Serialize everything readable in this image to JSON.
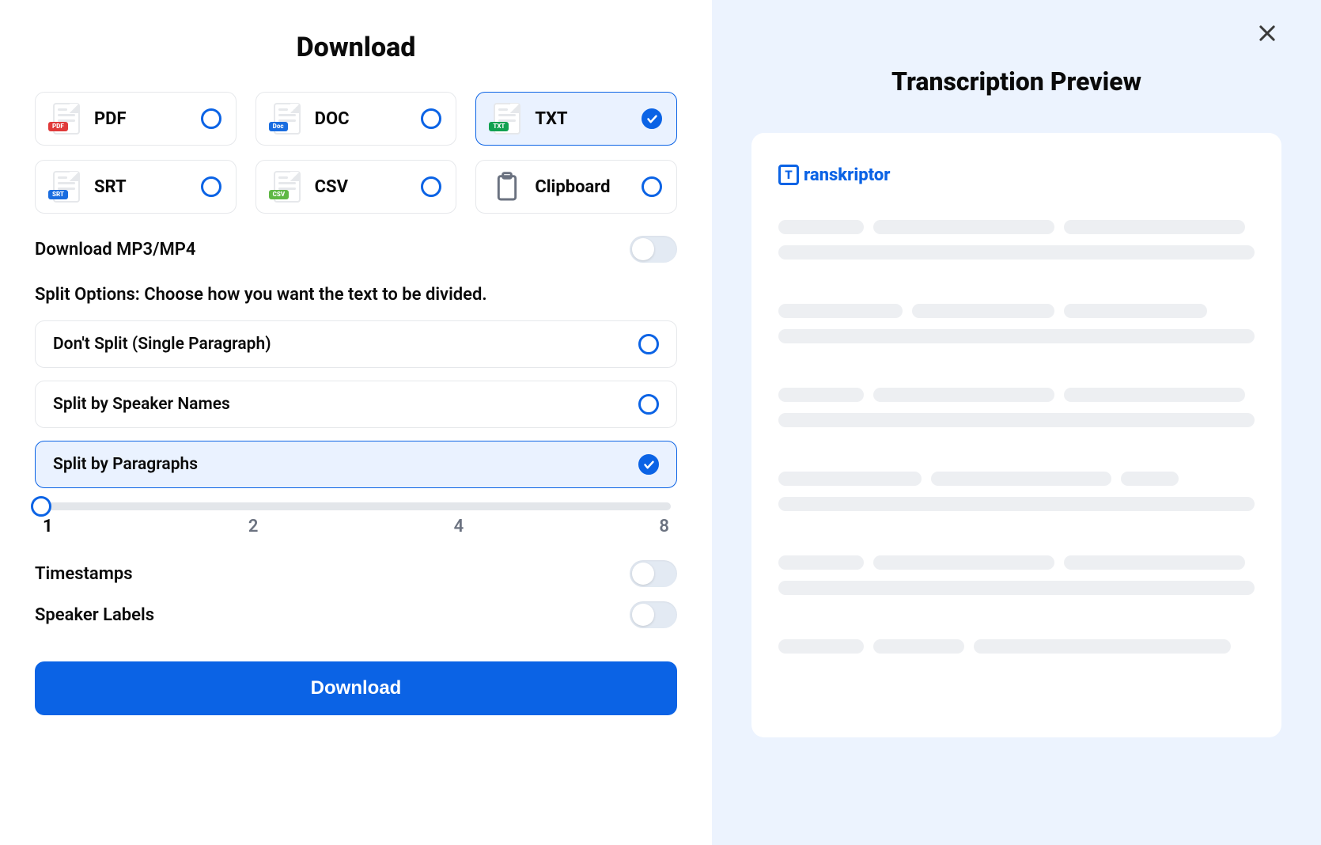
{
  "left": {
    "title": "Download",
    "formats": [
      {
        "key": "pdf",
        "label": "PDF",
        "badge_text": "PDF",
        "badge_color": "#e03a3a",
        "selected": false
      },
      {
        "key": "doc",
        "label": "DOC",
        "badge_text": "Doc",
        "badge_color": "#1a6de0",
        "selected": false
      },
      {
        "key": "txt",
        "label": "TXT",
        "badge_text": "TXT",
        "badge_color": "#12a150",
        "selected": true
      },
      {
        "key": "srt",
        "label": "SRT",
        "badge_text": "SRT",
        "badge_color": "#1a6de0",
        "selected": false
      },
      {
        "key": "csv",
        "label": "CSV",
        "badge_text": "CSV",
        "badge_color": "#5fb845",
        "selected": false
      },
      {
        "key": "clip",
        "label": "Clipboard",
        "icon": "clipboard",
        "selected": false
      }
    ],
    "download_media_label": "Download MP3/MP4",
    "download_media_on": false,
    "split_section_label": "Split Options: Choose how you want the text to be divided.",
    "split_options": [
      {
        "key": "none",
        "label": "Don't Split (Single Paragraph)",
        "selected": false
      },
      {
        "key": "speaker",
        "label": "Split by Speaker Names",
        "selected": false
      },
      {
        "key": "para",
        "label": "Split by Paragraphs",
        "selected": true
      }
    ],
    "slider": {
      "min": 1,
      "max": 8,
      "value": 1,
      "ticks": [
        "1",
        "2",
        "4",
        "8"
      ]
    },
    "timestamps_label": "Timestamps",
    "timestamps_on": false,
    "speaker_labels_label": "Speaker Labels",
    "speaker_labels_on": false,
    "download_button_label": "Download"
  },
  "right": {
    "title": "Transcription Preview",
    "brand": "ranskriptor",
    "brand_initial": "T",
    "skeleton_groups": [
      [
        [
          18,
          38,
          38
        ],
        [
          100
        ]
      ],
      [
        [
          26,
          30,
          30
        ],
        [
          100
        ]
      ],
      [
        [
          18,
          38,
          38
        ],
        [
          100
        ]
      ],
      [
        [
          30,
          38,
          12
        ],
        [
          100
        ]
      ],
      [
        [
          18,
          38,
          38
        ],
        [
          100
        ]
      ],
      [
        [
          18,
          19,
          54
        ]
      ]
    ],
    "skeleton_color": "#edeff2"
  },
  "colors": {
    "primary": "#0b63e5",
    "panel_bg": "#ecf3fe",
    "border": "#e6e8eb"
  }
}
